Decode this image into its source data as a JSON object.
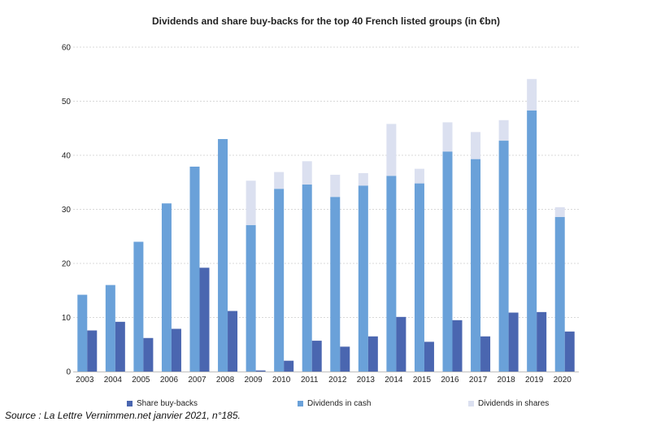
{
  "chart_data": {
    "type": "bar",
    "title": "Dividends and share buy-backs for the top 40 French listed groups (in €bn)",
    "xlabel": "",
    "ylabel": "",
    "ylim": [
      0,
      60
    ],
    "yticks": [
      0,
      10,
      20,
      30,
      40,
      50,
      60
    ],
    "grid": true,
    "legend_position": "bottom",
    "categories": [
      "2003",
      "2004",
      "2005",
      "2006",
      "2007",
      "2008",
      "2009",
      "2010",
      "2011",
      "2012",
      "2013",
      "2014",
      "2015",
      "2016",
      "2017",
      "2018",
      "2019",
      "2020"
    ],
    "series": [
      {
        "name": "Share buy-backs",
        "color": "#4a66b0",
        "values": [
          7.6,
          9.2,
          6.2,
          7.9,
          19.2,
          11.2,
          0.2,
          2.0,
          5.7,
          4.6,
          6.5,
          10.1,
          5.5,
          9.5,
          6.5,
          10.9,
          11.0,
          7.4
        ]
      },
      {
        "name": "Dividends in cash",
        "color": "#6aa1d9",
        "values": [
          14.2,
          16.0,
          24.0,
          31.1,
          37.9,
          43.0,
          27.1,
          33.8,
          34.6,
          32.3,
          34.4,
          36.2,
          34.8,
          40.7,
          39.3,
          42.7,
          48.3,
          28.6
        ]
      },
      {
        "name": "Dividends in shares",
        "color": "#dbe0f0",
        "values": [
          0,
          0,
          0,
          0,
          0,
          0,
          8.2,
          3.1,
          4.3,
          4.1,
          2.3,
          9.6,
          2.7,
          5.4,
          5.0,
          3.8,
          5.8,
          1.8
        ]
      }
    ]
  },
  "source_text": "Source : La Lettre Vernimmen.net janvier 2021, n°185."
}
